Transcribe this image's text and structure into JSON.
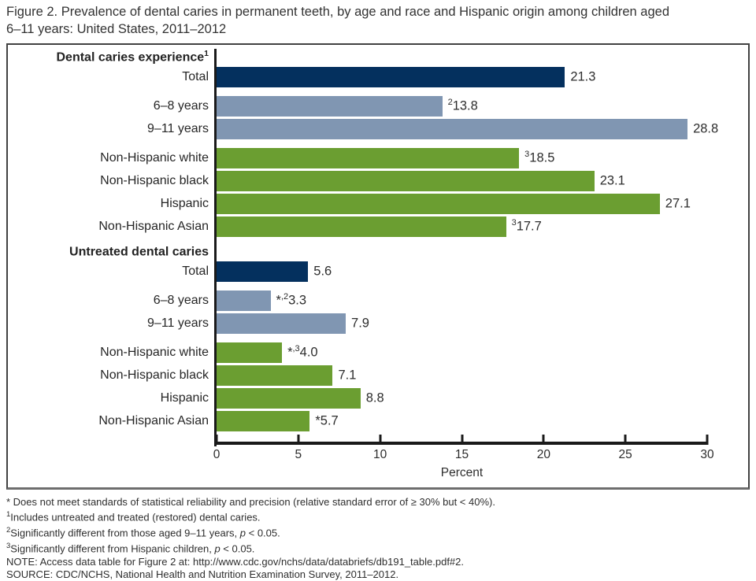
{
  "title": {
    "line1": "Figure 2. Prevalence of dental caries in permanent teeth, by age and race and Hispanic origin among children aged",
    "line2": "6–11 years: United States, 2011–2012"
  },
  "colors": {
    "navy": "#04305e",
    "steel": "#8096b2",
    "green": "#6b9e31",
    "axis": "#1a1a1a"
  },
  "chart_data": {
    "type": "bar",
    "orientation": "horizontal",
    "title": "Figure 2. Prevalence of dental caries in permanent teeth, by age and race and Hispanic origin among children aged 6–11 years: United States, 2011–2012",
    "xlabel": "Percent",
    "xlim": [
      0,
      30
    ],
    "xticks": [
      0,
      5,
      10,
      15,
      20,
      25,
      30
    ],
    "grid": false,
    "legend": "none",
    "groups": [
      {
        "header": "Dental caries experience",
        "header_sup": "1"
      },
      {
        "header": "Untreated dental caries",
        "header_sup": ""
      }
    ],
    "rows": [
      {
        "section": "Dental caries experience",
        "category": "Total",
        "value": 21.3,
        "num": "21.3",
        "star": "",
        "sup": ""
      },
      {
        "section": "Dental caries experience",
        "category": "6–8 years",
        "value": 13.8,
        "num": "13.8",
        "star": "",
        "sup": "2"
      },
      {
        "section": "Dental caries experience",
        "category": "9–11 years",
        "value": 28.8,
        "num": "28.8",
        "star": "",
        "sup": ""
      },
      {
        "section": "Dental caries experience",
        "category": "Non-Hispanic white",
        "value": 18.5,
        "num": "18.5",
        "star": "",
        "sup": "3"
      },
      {
        "section": "Dental caries experience",
        "category": "Non-Hispanic black",
        "value": 23.1,
        "num": "23.1",
        "star": "",
        "sup": ""
      },
      {
        "section": "Dental caries experience",
        "category": "Hispanic",
        "value": 27.1,
        "num": "27.1",
        "star": "",
        "sup": ""
      },
      {
        "section": "Dental caries experience",
        "category": "Non-Hispanic Asian",
        "value": 17.7,
        "num": "17.7",
        "star": "",
        "sup": "3"
      },
      {
        "section": "Untreated dental caries",
        "category": "Total",
        "value": 5.6,
        "num": "5.6",
        "star": "",
        "sup": ""
      },
      {
        "section": "Untreated dental caries",
        "category": "6–8 years",
        "value": 3.3,
        "num": "3.3",
        "star": "*",
        "sup": ",2"
      },
      {
        "section": "Untreated dental caries",
        "category": "9–11 years",
        "value": 7.9,
        "num": "7.9",
        "star": "",
        "sup": ""
      },
      {
        "section": "Untreated dental caries",
        "category": "Non-Hispanic white",
        "value": 4.0,
        "num": "4.0",
        "star": "*",
        "sup": ",3"
      },
      {
        "section": "Untreated dental caries",
        "category": "Non-Hispanic black",
        "value": 7.1,
        "num": "7.1",
        "star": "",
        "sup": ""
      },
      {
        "section": "Untreated dental caries",
        "category": "Hispanic",
        "value": 8.8,
        "num": "8.8",
        "star": "",
        "sup": ""
      },
      {
        "section": "Untreated dental caries",
        "category": "Non-Hispanic Asian",
        "value": 5.7,
        "num": "5.7",
        "star": "*",
        "sup": ""
      }
    ]
  },
  "footnotes": {
    "star_line": "* Does not meet standards of statistical reliability and precision (relative standard error of ≥ 30% but < 40%).",
    "f1": {
      "sup": "1",
      "text": "Includes untreated and treated (restored) dental caries."
    },
    "f2": {
      "sup": "2",
      "pre": "Significantly different from those aged 9–11 years, ",
      "italic": "p",
      "post": " < 0.05."
    },
    "f3": {
      "sup": "3",
      "pre": "Significantly different from Hispanic children, ",
      "italic": "p",
      "post": " < 0.05."
    },
    "note": "NOTE: Access data table for Figure 2 at: http://www.cdc.gov/nchs/data/databriefs/db191_table.pdf#2.",
    "source": "SOURCE: CDC/NCHS, National Health and Nutrition Examination Survey, 2011–2012."
  }
}
